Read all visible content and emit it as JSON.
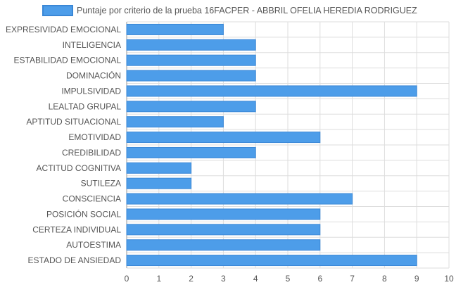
{
  "chart_data": {
    "type": "bar",
    "orientation": "horizontal",
    "categories": [
      "EXPRESIVIDAD EMOCIONAL",
      "INTELIGENCIA",
      "ESTABILIDAD EMOCIONAL",
      "DOMINACIÓN",
      "IMPULSIVIDAD",
      "LEALTAD GRUPAL",
      "APTITUD SITUACIONAL",
      "EMOTIVIDAD",
      "CREDIBILIDAD",
      "ACTITUD COGNITIVA",
      "SUTILEZA",
      "CONSCIENCIA",
      "POSICIÓN SOCIAL",
      "CERTEZA INDIVIDUAL",
      "AUTOESTIMA",
      "ESTADO DE ANSIEDAD"
    ],
    "series": [
      {
        "name": "Puntaje por criterio de la prueba 16FACPER - ABBRIL OFELIA HEREDIA RODRIGUEZ",
        "values": [
          3,
          4,
          4,
          4,
          9,
          4,
          3,
          6,
          4,
          2,
          2,
          7,
          6,
          6,
          6,
          9
        ]
      }
    ],
    "xlim": [
      0,
      10
    ],
    "x_ticks": [
      "0",
      "1",
      "2",
      "3",
      "4",
      "5",
      "6",
      "7",
      "8",
      "9",
      "10"
    ],
    "grid": true,
    "legend_position": "top",
    "colors": {
      "bar_fill": "#4d9de9",
      "bar_stroke": "#3a87d6",
      "grid": "#dddddd",
      "axis": "#999999"
    }
  }
}
